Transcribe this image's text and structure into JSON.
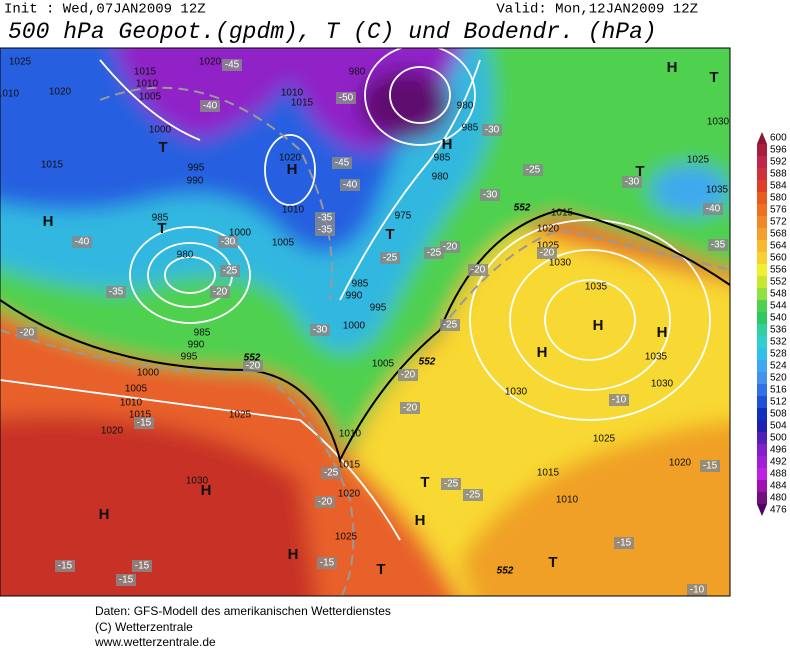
{
  "header": {
    "init": "Init : Wed,07JAN2009 12Z",
    "valid": "Valid: Mon,12JAN2009 12Z",
    "title": "500 hPa Geopot.(gpdm), T (C) und Bodendr. (hPa)"
  },
  "legend": {
    "levels": [
      600,
      596,
      592,
      588,
      584,
      580,
      576,
      572,
      568,
      564,
      560,
      556,
      552,
      548,
      544,
      540,
      536,
      532,
      528,
      524,
      520,
      516,
      512,
      508,
      504,
      500,
      496,
      492,
      488,
      484,
      480,
      476
    ],
    "colors": [
      "#8a1630",
      "#a81e3c",
      "#c0264a",
      "#d0303a",
      "#e03c28",
      "#e85a20",
      "#ee7020",
      "#f08828",
      "#f4a030",
      "#f8b830",
      "#f8d030",
      "#f0f030",
      "#c8e830",
      "#90e040",
      "#50d050",
      "#30c860",
      "#30d0a0",
      "#30d0d0",
      "#30c0e8",
      "#40a8f0",
      "#4890f0",
      "#3070e8",
      "#2050d8",
      "#1030c0",
      "#2020b0",
      "#5020b8",
      "#8020c8",
      "#a020d8",
      "#c020e0",
      "#a010b0",
      "#701080",
      "#500060"
    ]
  },
  "map": {
    "pressure_centers": [
      "H",
      "H",
      "H",
      "H",
      "H",
      "H",
      "H",
      "H",
      "H",
      "H",
      "H",
      "T",
      "T",
      "T",
      "T",
      "T",
      "T",
      "T",
      "T"
    ],
    "isobar_labels": [
      "1025",
      "1020",
      "1015",
      "1010",
      "1005",
      "1020",
      "1010",
      "1000",
      "1015",
      "995",
      "990",
      "985",
      "1020",
      "1010",
      "1015",
      "980",
      "985",
      "980",
      "985",
      "980",
      "975",
      "1015",
      "1020",
      "1025",
      "1030",
      "1035",
      "1035",
      "1030",
      "1030",
      "1025",
      "1020",
      "1015",
      "1010",
      "1005",
      "1000",
      "995",
      "990",
      "985",
      "985",
      "990",
      "995",
      "1000",
      "1005",
      "1010",
      "1015",
      "1020",
      "1025",
      "1030",
      "1010",
      "1015",
      "1020",
      "1025",
      "1030",
      "1025",
      "1000",
      "1005",
      "980",
      "1035",
      "1010"
    ],
    "temperature_labels": [
      "-45",
      "-40",
      "-50",
      "-45",
      "-40",
      "-35",
      "-35",
      "-30",
      "-40",
      "-35",
      "-25",
      "-20",
      "-20",
      "-30",
      "-25",
      "-20",
      "-25",
      "-20",
      "-30",
      "-25",
      "-30",
      "-20",
      "-25",
      "-20",
      "-15",
      "-20",
      "-20",
      "-25",
      "-20",
      "-25",
      "-25",
      "-15",
      "-15",
      "-15",
      "-15",
      "-10",
      "-15",
      "-15",
      "-10",
      "-30",
      "-40",
      "-35"
    ],
    "contour_labels": [
      "552",
      "552",
      "552",
      "552"
    ]
  },
  "footer": [
    "Daten: GFS-Modell des amerikanischen Wetterdienstes",
    "(C) Wetterzentrale",
    "www.wetterzentrale.de"
  ]
}
